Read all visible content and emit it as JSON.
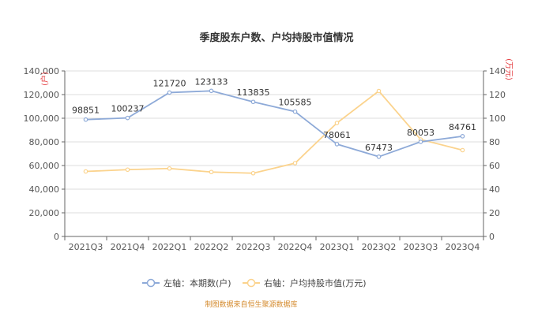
{
  "chart_data": {
    "type": "line",
    "title": "季度股东户数、户均持股市值情况",
    "categories": [
      "2021Q3",
      "2021Q4",
      "2022Q1",
      "2022Q2",
      "2022Q3",
      "2022Q4",
      "2023Q1",
      "2023Q2",
      "2023Q3",
      "2023Q4"
    ],
    "left_axis": {
      "unit": "(户)",
      "ylim": [
        0,
        140000
      ],
      "ticks": [
        "0",
        "20,000",
        "40,000",
        "60,000",
        "80,000",
        "100,000",
        "120,000",
        "140,000"
      ]
    },
    "right_axis": {
      "unit": "(万元)",
      "ylim": [
        0,
        140
      ],
      "ticks": [
        "0",
        "20",
        "40",
        "60",
        "80",
        "100",
        "120",
        "140"
      ]
    },
    "series": [
      {
        "name": "左轴：本期数(户)",
        "axis": "left",
        "color": "#8eaad8",
        "values": [
          98851,
          100237,
          121720,
          123133,
          113835,
          105585,
          78061,
          67473,
          80053,
          84761
        ],
        "labels": [
          "98851",
          "100237",
          "121720",
          "123133",
          "113835",
          "105585",
          "78061",
          "67473",
          "80053",
          "84761"
        ]
      },
      {
        "name": "右轴：户均持股市值(万元)",
        "axis": "right",
        "color": "#fbd38d",
        "values": [
          55,
          56.5,
          57.5,
          54.5,
          53.5,
          62,
          96,
          123,
          82,
          73
        ]
      }
    ],
    "grid": true,
    "legend_position": "bottom"
  },
  "footer": {
    "source": "制图数据来自恒生聚源数据库"
  }
}
